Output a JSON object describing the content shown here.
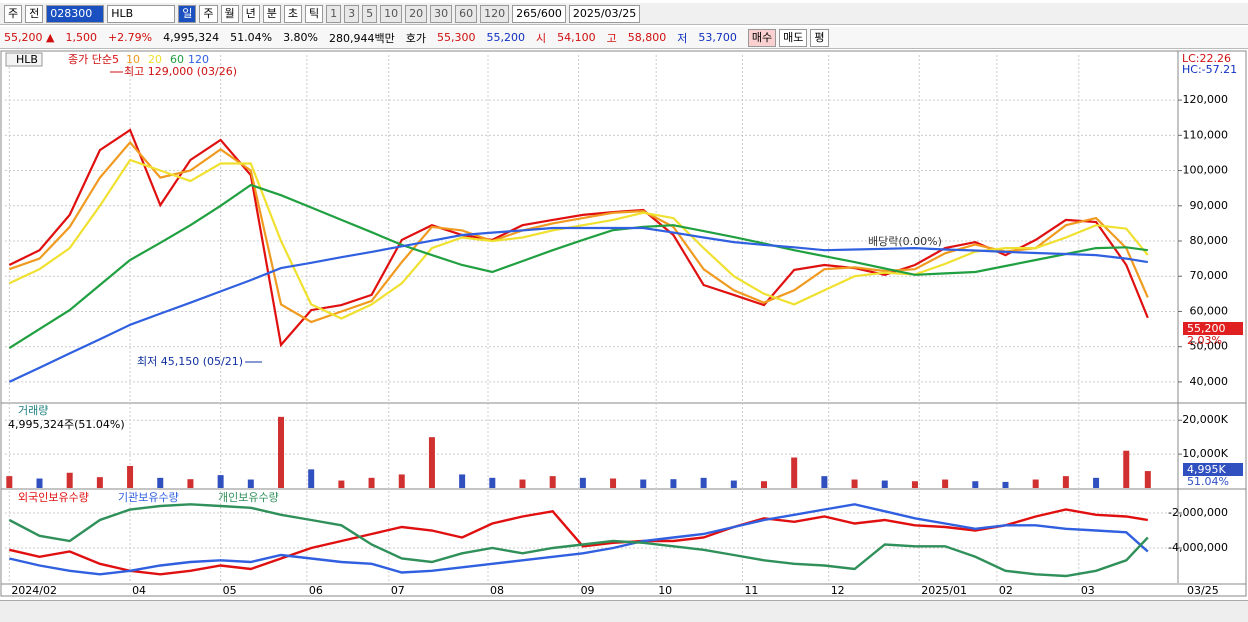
{
  "toolbar": {
    "items": [
      "주",
      "전",
      "028300",
      "HLB",
      "일",
      "주",
      "월",
      "년",
      "분",
      "초",
      "틱",
      "1",
      "3",
      "5",
      "10",
      "20",
      "30",
      "60",
      "120",
      "265/600",
      "2025/03/25"
    ]
  },
  "info_bar": {
    "items": [
      "55,200 ▲",
      "1,500",
      "+2.79%",
      "4,995,324",
      "51.04%",
      "3.80%",
      "280,944백만",
      "호가",
      "55,300",
      "55,200",
      "시",
      "54,100",
      "고",
      "58,800",
      "저",
      "53,700"
    ],
    "buttons": [
      "매수",
      "매도",
      "평"
    ]
  },
  "chart_data": [
    {
      "type": "line",
      "title": "HLB",
      "legend_prefix": "종가 단순",
      "x": [
        0,
        7,
        14,
        21,
        28,
        35,
        42,
        49,
        56,
        63,
        70,
        77,
        84,
        91,
        98,
        105,
        112,
        119,
        126,
        133,
        140,
        147,
        154,
        161,
        168,
        175,
        182,
        189,
        196,
        203,
        210,
        217,
        224,
        231,
        238,
        245,
        252,
        259,
        264
      ],
      "xlim": [
        -1,
        271
      ],
      "xticks": [
        {
          "value": 0,
          "label": "2024/02"
        },
        {
          "value": 28,
          "label": "04"
        },
        {
          "value": 49,
          "label": "05"
        },
        {
          "value": 69,
          "label": "06"
        },
        {
          "value": 88,
          "label": "07"
        },
        {
          "value": 111,
          "label": "08"
        },
        {
          "value": 132,
          "label": "09"
        },
        {
          "value": 150,
          "label": "10"
        },
        {
          "value": 170,
          "label": "11"
        },
        {
          "value": 190,
          "label": "12"
        },
        {
          "value": 211,
          "label": "2025/01"
        },
        {
          "value": 229,
          "label": "02"
        },
        {
          "value": 248,
          "label": "03"
        }
      ],
      "last_date": "03/25",
      "ylim": [
        34300,
        132800
      ],
      "yticks": [
        {
          "value": 40000,
          "label": "40,000"
        },
        {
          "value": 50000,
          "label": "50,000"
        },
        {
          "value": 60000,
          "label": "60,000"
        },
        {
          "value": 70000,
          "label": "70,000"
        },
        {
          "value": 80000,
          "label": "80,000"
        },
        {
          "value": 90000,
          "label": "90,000"
        },
        {
          "value": 100000,
          "label": "100,000"
        },
        {
          "value": 110000,
          "label": "110,000"
        },
        {
          "value": 120000,
          "label": "120,000"
        }
      ],
      "grid": true,
      "series": [
        {
          "name": "5",
          "color": "#e01010",
          "values": [
            73200,
            77400,
            87400,
            105800,
            111500,
            90200,
            103000,
            108700,
            98700,
            50500,
            60400,
            61800,
            64700,
            80300,
            84500,
            81700,
            80300,
            84500,
            86000,
            87400,
            88200,
            88800,
            81700,
            67500,
            64700,
            61800,
            71800,
            73200,
            72300,
            70400,
            73200,
            78000,
            79700,
            76000,
            80300,
            86000,
            85400,
            73200,
            58200
          ]
        },
        {
          "name": "10",
          "color": "#f09a20",
          "values": [
            72000,
            75000,
            84000,
            98000,
            108000,
            98000,
            100000,
            106000,
            100000,
            62000,
            57000,
            60000,
            63000,
            74000,
            84000,
            83000,
            80000,
            83000,
            85000,
            86500,
            88000,
            88500,
            84000,
            72000,
            66000,
            62500,
            66000,
            72000,
            72500,
            71500,
            72000,
            76500,
            79000,
            77000,
            78000,
            84500,
            86500,
            78000,
            64000
          ]
        },
        {
          "name": "20",
          "color": "#f0e030",
          "values": [
            68000,
            72000,
            78000,
            90000,
            103000,
            100000,
            97000,
            102000,
            102000,
            80000,
            62000,
            58000,
            62000,
            68000,
            78000,
            81000,
            80000,
            81000,
            83000,
            84500,
            86000,
            88000,
            86500,
            78000,
            70000,
            65000,
            62000,
            66000,
            70000,
            71000,
            70500,
            73500,
            77000,
            78000,
            78000,
            81000,
            84500,
            83500,
            76000
          ]
        },
        {
          "name": "60",
          "color": "#20a040",
          "values": [
            49600,
            55000,
            60400,
            67500,
            74600,
            79500,
            84500,
            90000,
            95900,
            93000,
            89500,
            86000,
            82500,
            78900,
            76000,
            73200,
            71200,
            74300,
            77400,
            80300,
            83100,
            84000,
            84500,
            82800,
            81100,
            79300,
            77400,
            75700,
            74000,
            72200,
            70400,
            70800,
            71200,
            72900,
            74600,
            76300,
            78000,
            78200,
            77400
          ]
        },
        {
          "name": "120",
          "color": "#3060e0",
          "values": [
            40000,
            44000,
            48100,
            52100,
            56200,
            59400,
            62500,
            65700,
            68900,
            72300,
            73800,
            75400,
            76900,
            78500,
            80100,
            81700,
            82400,
            83000,
            83700,
            83700,
            83700,
            83700,
            82400,
            81000,
            79700,
            78900,
            78200,
            77400,
            77600,
            77800,
            78000,
            77600,
            77300,
            76900,
            76600,
            76300,
            76000,
            75000,
            74000
          ]
        }
      ],
      "annotations": [
        "최고 129,000 (03/26)",
        "최저 45,150 (05/21)",
        "배당락(0.00%)"
      ],
      "right_labels": [
        "LC:22.26",
        "HC:-57.21",
        "55,200",
        "2.03%"
      ]
    },
    {
      "type": "bar",
      "title": "거래량",
      "subtitle": "4,995,324주(51.04%)",
      "x": [
        0,
        7,
        14,
        21,
        28,
        35,
        42,
        49,
        56,
        63,
        70,
        77,
        84,
        91,
        98,
        105,
        112,
        119,
        126,
        133,
        140,
        147,
        154,
        161,
        168,
        175,
        182,
        189,
        196,
        203,
        210,
        217,
        224,
        231,
        238,
        245,
        252,
        259,
        264
      ],
      "values": [
        3500,
        2800,
        4500,
        3200,
        6500,
        3000,
        2600,
        3800,
        2500,
        21000,
        5500,
        2200,
        3000,
        4000,
        15000,
        4000,
        3000,
        2500,
        3500,
        3000,
        2800,
        2500,
        2600,
        3000,
        2200,
        2000,
        9000,
        3500,
        2500,
        2200,
        2000,
        2500,
        2000,
        1800,
        2500,
        3500,
        3000,
        11000,
        4995
      ],
      "colors": [
        "#d03030",
        "#3050c0",
        "#d03030",
        "#d03030",
        "#d03030",
        "#3050c0",
        "#d03030",
        "#3050c0",
        "#3050c0",
        "#d03030",
        "#3050c0",
        "#d03030",
        "#d03030",
        "#d03030",
        "#d03030",
        "#3050c0",
        "#3050c0",
        "#d03030",
        "#d03030",
        "#3050c0",
        "#d03030",
        "#3050c0",
        "#3050c0",
        "#3050c0",
        "#3050c0",
        "#d03030",
        "#d03030",
        "#3050c0",
        "#d03030",
        "#3050c0",
        "#d03030",
        "#d03030",
        "#3050c0",
        "#3050c0",
        "#d03030",
        "#d03030",
        "#3050c0",
        "#d03030",
        "#d03030"
      ],
      "ylim": [
        0,
        24500
      ],
      "yticks": [
        {
          "value": 10000,
          "label": "10,000K"
        },
        {
          "value": 20000,
          "label": "20,000K"
        }
      ],
      "right_labels": [
        "4,995K",
        "51.04%"
      ]
    },
    {
      "type": "line",
      "x": [
        0,
        7,
        14,
        21,
        28,
        35,
        42,
        49,
        56,
        63,
        70,
        77,
        84,
        91,
        98,
        105,
        112,
        119,
        126,
        133,
        140,
        147,
        154,
        161,
        168,
        175,
        182,
        189,
        196,
        203,
        210,
        217,
        224,
        231,
        238,
        245,
        252,
        259,
        264
      ],
      "ylim": [
        -6000000,
        -800000
      ],
      "yticks": [
        {
          "value": -2000000,
          "label": "-2,000,000"
        },
        {
          "value": -4000000,
          "label": "-4,000,000"
        }
      ],
      "series": [
        {
          "name": "외국인보유수량",
          "color": "#e01010",
          "values": [
            -4100000,
            -4500000,
            -4200000,
            -4900000,
            -5300000,
            -5500000,
            -5300000,
            -5000000,
            -5200000,
            -4600000,
            -4000000,
            -3600000,
            -3200000,
            -2800000,
            -3000000,
            -3400000,
            -2600000,
            -2200000,
            -1900000,
            -3900000,
            -3700000,
            -3600000,
            -3600000,
            -3400000,
            -2800000,
            -2300000,
            -2500000,
            -2200000,
            -2600000,
            -2400000,
            -2700000,
            -2800000,
            -3000000,
            -2700000,
            -2200000,
            -1800000,
            -2100000,
            -2200000,
            -2400000
          ]
        },
        {
          "name": "기관보유수량",
          "color": "#3060e0",
          "values": [
            -4600000,
            -5000000,
            -5300000,
            -5500000,
            -5300000,
            -5000000,
            -4800000,
            -4700000,
            -4800000,
            -4400000,
            -4600000,
            -4800000,
            -4900000,
            -5400000,
            -5300000,
            -5100000,
            -4900000,
            -4700000,
            -4500000,
            -4300000,
            -4000000,
            -3600000,
            -3400000,
            -3200000,
            -2800000,
            -2400000,
            -2100000,
            -1800000,
            -1500000,
            -1900000,
            -2300000,
            -2600000,
            -2900000,
            -2700000,
            -2700000,
            -2900000,
            -3000000,
            -3100000,
            -4200000
          ]
        },
        {
          "name": "개인보유수량",
          "color": "#30905a",
          "values": [
            -2400000,
            -3300000,
            -3600000,
            -2400000,
            -1800000,
            -1600000,
            -1500000,
            -1600000,
            -1700000,
            -2100000,
            -2400000,
            -2700000,
            -3800000,
            -4600000,
            -4800000,
            -4300000,
            -4000000,
            -4300000,
            -4000000,
            -3800000,
            -3600000,
            -3700000,
            -3900000,
            -4100000,
            -4400000,
            -4700000,
            -4900000,
            -5000000,
            -5200000,
            -3800000,
            -3900000,
            -3900000,
            -4500000,
            -5300000,
            -5500000,
            -5600000,
            -5300000,
            -4700000,
            -3400000
          ]
        }
      ]
    }
  ]
}
